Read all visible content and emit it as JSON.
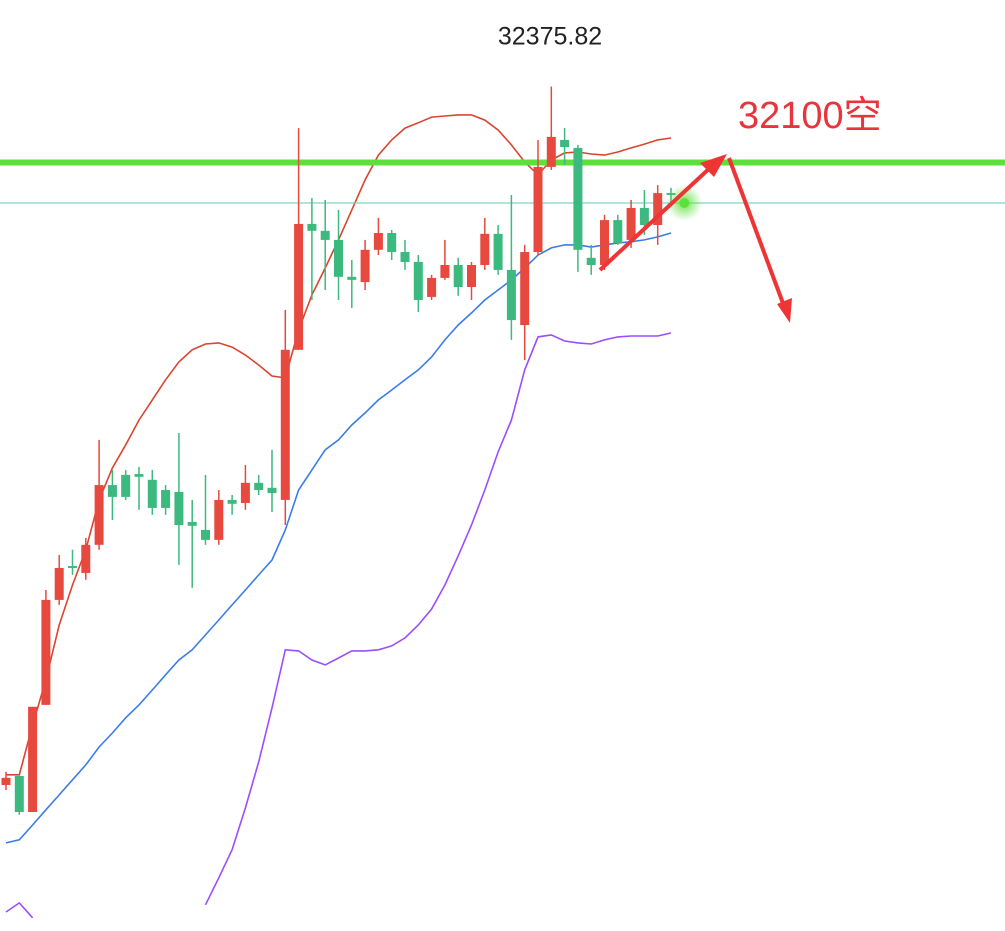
{
  "chart_data": {
    "type": "candlestick",
    "ylim": [
      29310,
      32690
    ],
    "up_color": "#e8493f",
    "down_color": "#3cb97e",
    "open": [
      29840,
      29873,
      29742,
      30131,
      30512,
      30635,
      30610,
      30712,
      30929,
      30966,
      30969,
      30948,
      30911,
      30904,
      30795,
      30766,
      30730,
      30875,
      30864,
      30937,
      30919,
      30875,
      31420,
      31877,
      31852,
      31819,
      31685,
      31666,
      31783,
      31844,
      31775,
      31739,
      31612,
      31681,
      31728,
      31648,
      31728,
      31841,
      31710,
      31510,
      31775,
      32084,
      32182,
      32153,
      31754,
      31728,
      31891,
      31819,
      31935,
      31873,
      31989
    ],
    "high": [
      29888,
      29873,
      30124,
      30548,
      30675,
      30694,
      30737,
      31093,
      30984,
      30984,
      30995,
      30984,
      30929,
      31118,
      30875,
      30966,
      30911,
      30893,
      31002,
      30966,
      31057,
      31565,
      32225,
      31971,
      31964,
      31928,
      31746,
      31819,
      31899,
      31855,
      31819,
      31764,
      31692,
      31819,
      31754,
      31739,
      31899,
      31873,
      31982,
      31801,
      32182,
      32375.82,
      32225,
      32164,
      31801,
      31910,
      31910,
      31964,
      32000,
      32018,
      32008
    ],
    "low": [
      29822,
      29732,
      29742,
      30131,
      30494,
      30603,
      30585,
      30694,
      30802,
      30875,
      30839,
      30821,
      30821,
      30639,
      30556,
      30712,
      30712,
      30821,
      30839,
      30893,
      30831,
      30784,
      31420,
      31601,
      31637,
      31601,
      31572,
      31637,
      31764,
      31746,
      31710,
      31557,
      31601,
      31674,
      31616,
      31601,
      31710,
      31692,
      31456,
      31383,
      31764,
      32073,
      32091,
      31703,
      31692,
      31710,
      31801,
      31790,
      31837,
      31801,
      31946
    ],
    "close": [
      29866,
      29742,
      30124,
      30512,
      30628,
      30628,
      30712,
      30929,
      30886,
      30886,
      30959,
      30846,
      30846,
      30784,
      30781,
      30730,
      30875,
      30861,
      30937,
      30911,
      30900,
      31420,
      31877,
      31852,
      31819,
      31685,
      31674,
      31783,
      31844,
      31775,
      31739,
      31601,
      31681,
      31728,
      31648,
      31728,
      31841,
      31710,
      31528,
      31775,
      32084,
      32193,
      32156,
      31783,
      31728,
      31891,
      31808,
      31935,
      31873,
      31989,
      31982
    ],
    "lines": [
      {
        "color": "#d9452f",
        "values": [
          29877,
          29877,
          30058,
          30222,
          30421,
          30566,
          30694,
          30875,
          30991,
          31075,
          31165,
          31238,
          31311,
          31376,
          31420,
          31441,
          31445,
          31430,
          31401,
          31365,
          31325,
          31318,
          31492,
          31619,
          31717,
          31819,
          31928,
          32037,
          32127,
          32182,
          32225,
          32244,
          32265,
          32269,
          32273,
          32273,
          32254,
          32218,
          32164,
          32102,
          32055,
          32109,
          32135,
          32138,
          32131,
          32127,
          32138,
          32153,
          32167,
          32182,
          32189
        ]
      },
      {
        "color": "#3b7de8",
        "values": [
          29630,
          29641,
          29695,
          29750,
          29804,
          29859,
          29913,
          29978,
          30029,
          30084,
          30131,
          30185,
          30240,
          30294,
          30331,
          30385,
          30439,
          30494,
          30548,
          30603,
          30657,
          30766,
          30911,
          30984,
          31057,
          31093,
          31147,
          31191,
          31238,
          31274,
          31311,
          31347,
          31394,
          31456,
          31510,
          31554,
          31601,
          31637,
          31674,
          31717,
          31764,
          31790,
          31801,
          31801,
          31793,
          31801,
          31808,
          31812,
          31819,
          31830,
          31844
        ]
      },
      {
        "color": "#9b4dff",
        "values": [
          29379,
          29412,
          29358,
          null,
          null,
          null,
          null,
          null,
          null,
          null,
          null,
          null,
          null,
          null,
          null,
          29405,
          29503,
          29605,
          29757,
          29924,
          30120,
          30331,
          30327,
          30294,
          30276,
          30301,
          30327,
          30327,
          30331,
          30345,
          30374,
          30421,
          30479,
          30566,
          30672,
          30784,
          30911,
          31049,
          31165,
          31347,
          31467,
          31474,
          31452,
          31445,
          31441,
          31456,
          31467,
          31470,
          31470,
          31470,
          31481
        ]
      }
    ],
    "resistance": 32100,
    "resistance_color": "#5ee03a",
    "last_price": 31953,
    "last_price_color": "#7fd3c0",
    "annotation": "32100空",
    "annotation_color": "#e8343a"
  }
}
